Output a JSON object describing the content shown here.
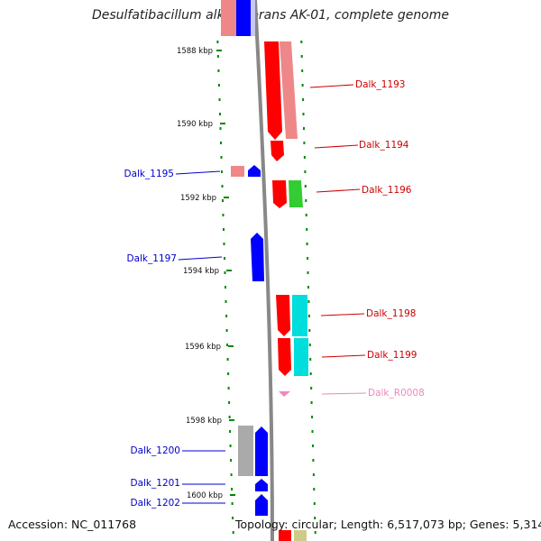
{
  "title": "Desulfatibacillum alkenivorans AK-01, complete genome",
  "footer": {
    "accession": "Accession: NC_011768",
    "summary": "Topology: circular; Length: 6,517,073 bp; Genes: 5,314"
  },
  "colors": {
    "minus_strand_label": "#0000cc",
    "plus_strand_label": "#cc0000",
    "rna_label": "#ee88bb",
    "gene_red": "#ff0000",
    "gene_pink": "#ee8888",
    "gene_blue": "#0000ff",
    "gene_green": "#33cc33",
    "gene_cyan": "#00dddd",
    "gene_grey": "#aaaaaa",
    "axis": "#888888",
    "ticks": "#008800"
  },
  "scale": {
    "tick_labels": [
      "1588 kbp",
      "1590 kbp",
      "1592 kbp",
      "1594 kbp",
      "1596 kbp",
      "1598 kbp",
      "1600 kbp"
    ]
  },
  "genes": [
    {
      "id": "Dalk_1193",
      "strand": "+"
    },
    {
      "id": "Dalk_1194",
      "strand": "+"
    },
    {
      "id": "Dalk_1195",
      "strand": "-"
    },
    {
      "id": "Dalk_1196",
      "strand": "+"
    },
    {
      "id": "Dalk_1197",
      "strand": "-"
    },
    {
      "id": "Dalk_1198",
      "strand": "+"
    },
    {
      "id": "Dalk_1199",
      "strand": "+"
    },
    {
      "id": "Dalk_R0008",
      "strand": "+"
    },
    {
      "id": "Dalk_1200",
      "strand": "-"
    },
    {
      "id": "Dalk_1201",
      "strand": "-"
    },
    {
      "id": "Dalk_1202",
      "strand": "-"
    }
  ]
}
